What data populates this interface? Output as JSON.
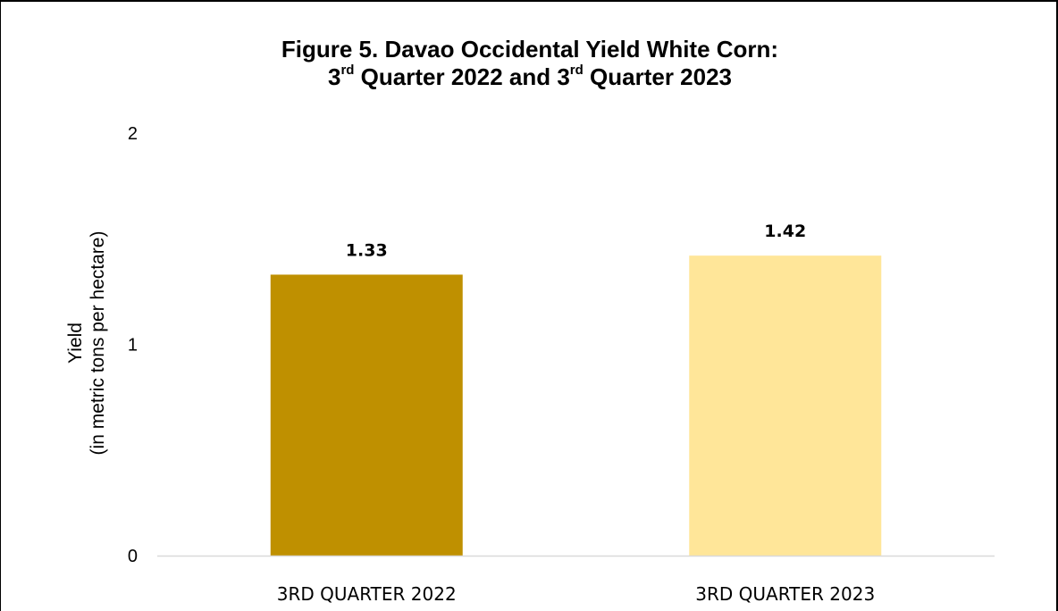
{
  "chart_title": {
    "line1": "Figure 5. Davao Occidental Yield White Corn:",
    "line2_part1": "3",
    "line2_sup1": "rd",
    "line2_part2": " Quarter 2022 and 3",
    "line2_sup2": "rd",
    "line2_part3": " Quarter 2023"
  },
  "chart_data": {
    "type": "bar",
    "title": "Figure 5. Davao Occidental Yield White Corn: 3rd Quarter 2022 and 3rd Quarter 2023",
    "categories": [
      "3RD QUARTER 2022",
      "3RD QUARTER 2023"
    ],
    "values": [
      1.33,
      1.42
    ],
    "value_labels": [
      "1.33",
      "1.42"
    ],
    "colors": [
      "#BF9000",
      "#FFE699"
    ],
    "ylabel_line1": "Yield",
    "ylabel_line2": "(in metric tons per hectare)",
    "yticks": [
      0,
      1,
      2
    ],
    "ytick_labels": [
      "0",
      "1",
      "2"
    ],
    "ylim": [
      0,
      2
    ],
    "grid": false,
    "legend": "none"
  }
}
